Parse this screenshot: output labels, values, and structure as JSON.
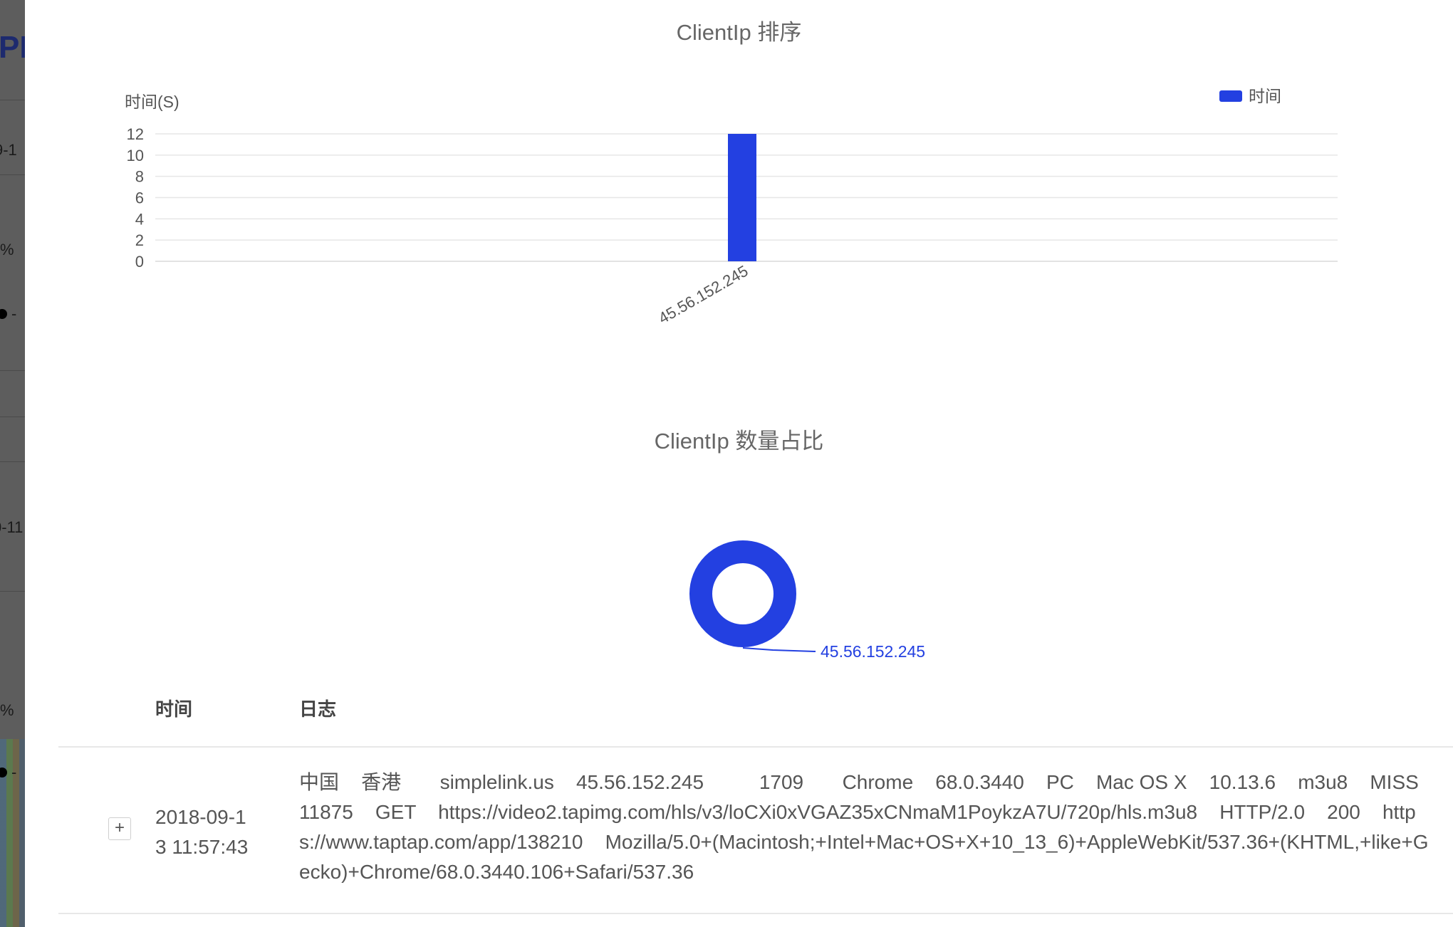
{
  "background": {
    "title_fragment": "PI",
    "text_fragments": [
      "9-1",
      "%",
      "-",
      "0-11",
      "%",
      "-"
    ]
  },
  "bar_chart": {
    "title": "ClientIp 排序",
    "y_axis_name": "时间(S)",
    "legend_label": "时间"
  },
  "pie_chart": {
    "title": "ClientIp 数量占比",
    "slice_label": "45.56.152.245"
  },
  "chart_data": [
    {
      "type": "bar",
      "title": "ClientIp 排序",
      "ylabel": "时间(S)",
      "categories": [
        "45.56.152.245"
      ],
      "series": [
        {
          "name": "时间",
          "values": [
            12
          ]
        }
      ],
      "yticks": [
        0,
        2,
        4,
        6,
        8,
        10,
        12
      ],
      "ylim": [
        0,
        12
      ],
      "legend_position": "top-right",
      "grid": true,
      "color": "#2340e1"
    },
    {
      "type": "pie",
      "title": "ClientIp 数量占比",
      "labels": [
        "45.56.152.245"
      ],
      "values": [
        1
      ],
      "donut": true,
      "color": "#2340e1"
    }
  ],
  "table": {
    "headers": {
      "time": "时间",
      "log": "日志"
    },
    "rows": [
      {
        "expand_symbol": "+",
        "time": "2018-09-13 11:57:43",
        "log": "中国    香港       simplelink.us    45.56.152.245          1709       Chrome    68.0.3440    PC    Mac OS X    10.13.6    m3u8    MISS    11875    GET    https://video2.tapimg.com/hls/v3/loCXi0xVGAZ35xCNmaM1PoykzA7U/720p/hls.m3u8    HTTP/2.0    200    https://www.taptap.com/app/138210    Mozilla/5.0+(Macintosh;+Intel+Mac+OS+X+10_13_6)+AppleWebKit/537.36+(KHTML,+like+Gecko)+Chrome/68.0.3440.106+Safari/537.36"
      }
    ]
  },
  "colors": {
    "accent": "#2340e1",
    "grid": "#e6e6e6",
    "text": "#555555",
    "overlay": "#5d5d5d"
  }
}
